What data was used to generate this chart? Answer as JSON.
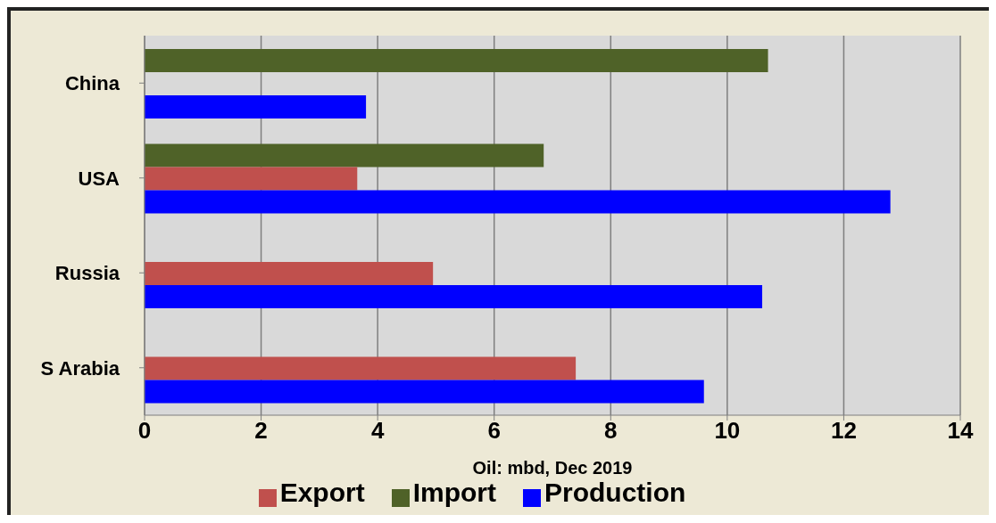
{
  "chart_data": {
    "type": "bar",
    "orientation": "horizontal",
    "xlabel": "Oil: mbd, Dec 2019",
    "categories": [
      "China",
      "USA",
      "Russia",
      "S Arabia"
    ],
    "series": [
      {
        "name": "Import",
        "color": "#4f6228",
        "values": [
          10.7,
          6.85,
          null,
          null
        ]
      },
      {
        "name": "Export",
        "color": "#c0504d",
        "values": [
          null,
          3.65,
          4.95,
          7.4
        ]
      },
      {
        "name": "Production",
        "color": "#0000ff",
        "values": [
          3.8,
          12.8,
          10.6,
          9.6
        ]
      }
    ],
    "xlim": [
      0,
      14
    ],
    "xticks": [
      0,
      2,
      4,
      6,
      8,
      10,
      12,
      14
    ],
    "grid": "x",
    "legend": "bottom"
  }
}
